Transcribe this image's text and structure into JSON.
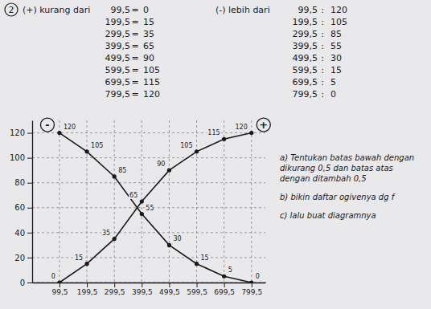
{
  "tables": [
    {
      "number": "2",
      "heading": "(+) kurang dari",
      "separator": "=",
      "rows": [
        [
          "99,5",
          "0"
        ],
        [
          "199,5",
          "15"
        ],
        [
          "299,5",
          "35"
        ],
        [
          "399,5",
          "65"
        ],
        [
          "499,5",
          "90"
        ],
        [
          "599,5",
          "105"
        ],
        [
          "699,5",
          "115"
        ],
        [
          "799,5",
          "120"
        ]
      ]
    },
    {
      "heading": "(-) lebih dari",
      "separator": ":",
      "rows": [
        [
          "99,5",
          "120"
        ],
        [
          "199,5",
          "105"
        ],
        [
          "299,5",
          "85"
        ],
        [
          "399,5",
          "55"
        ],
        [
          "499,5",
          "30"
        ],
        [
          "599,5",
          "15"
        ],
        [
          "699,5",
          "5"
        ],
        [
          "799,5",
          "0"
        ]
      ]
    }
  ],
  "notes": [
    "a) Tentukan batas bawah dengan dikurang 0,5 dan batas atas dengan ditambah 0,5",
    "b) bikin daftar ogivenya dg f",
    "c) lalu buat diagramnya"
  ],
  "chart_data": {
    "type": "line",
    "x": [
      99.5,
      199.5,
      299.5,
      399.5,
      499.5,
      599.5,
      699.5,
      799.5
    ],
    "series": [
      {
        "name": "+",
        "color": "#1a1a1a",
        "marker": "circle",
        "values": [
          0,
          15,
          35,
          65,
          90,
          105,
          115,
          120
        ]
      },
      {
        "name": "-",
        "color": "#1a1a1a",
        "marker": "circle",
        "values": [
          120,
          105,
          85,
          55,
          30,
          15,
          5,
          0
        ]
      }
    ],
    "xlim": [
      0,
      850
    ],
    "xticks": [
      {
        "value": 99.5,
        "label": "99,5"
      },
      {
        "value": 199.5,
        "label": "199,5"
      },
      {
        "value": 299.5,
        "label": "299,5"
      },
      {
        "value": 399.5,
        "label": "399,5"
      },
      {
        "value": 499.5,
        "label": "499,5"
      },
      {
        "value": 599.5,
        "label": "599,5"
      },
      {
        "value": 699.5,
        "label": "699,5"
      },
      {
        "value": 799.5,
        "label": "799,5"
      }
    ],
    "ylim": [
      0,
      130
    ],
    "yticks": [
      0,
      20,
      40,
      60,
      80,
      100,
      120
    ],
    "grid": true,
    "data_labels": true
  }
}
